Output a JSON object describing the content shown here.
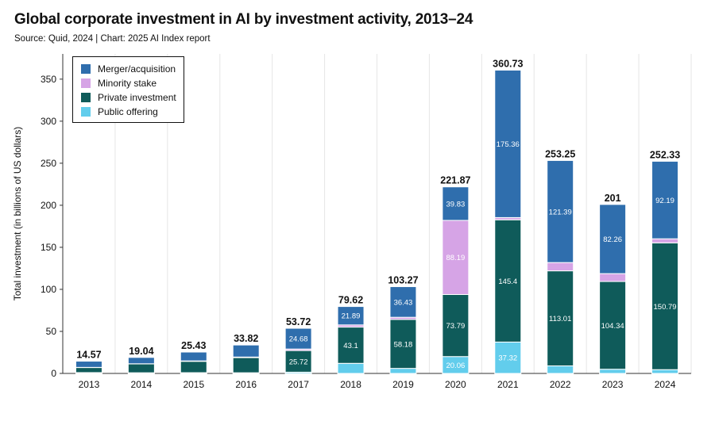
{
  "chart_data": {
    "type": "stacked-bar",
    "title": "Global corporate investment in AI by investment activity, 2013–24",
    "subtitle": "Source: Quid, 2024 | Chart: 2025 AI Index report",
    "xlabel": "",
    "ylabel": "Total investment (in billions of US dollars)",
    "ylim": [
      0,
      380
    ],
    "yticks": [
      0,
      50,
      100,
      150,
      200,
      250,
      300,
      350
    ],
    "grid": "vertical",
    "legend_position": "top-left",
    "categories": [
      "2013",
      "2014",
      "2015",
      "2016",
      "2017",
      "2018",
      "2019",
      "2020",
      "2021",
      "2022",
      "2023",
      "2024"
    ],
    "totals": [
      "14.57",
      "19.04",
      "25.43",
      "33.82",
      "53.72",
      "79.62",
      "103.27",
      "221.87",
      "360.73",
      "253.25",
      "201",
      "252.33"
    ],
    "series": [
      {
        "name": "Public offering",
        "color": "#62cdec",
        "values": [
          1.0,
          0.8,
          0.9,
          0.8,
          1.5,
          12.0,
          6.0,
          20.06,
          37.32,
          9.0,
          5.0,
          4.5
        ],
        "labels": [
          "",
          "",
          "",
          "",
          "",
          "",
          "",
          "20.06",
          "37.32",
          "",
          "",
          ""
        ]
      },
      {
        "name": "Private investment",
        "color": "#0f5b5a",
        "values": [
          6.0,
          10.5,
          13.5,
          18.0,
          25.72,
          43.1,
          58.18,
          73.79,
          145.4,
          113.01,
          104.34,
          150.79
        ],
        "labels": [
          "",
          "",
          "",
          "",
          "25.72",
          "43.1",
          "58.18",
          "73.79",
          "145.4",
          "113.01",
          "104.34",
          "150.79"
        ]
      },
      {
        "name": "Minority stake",
        "color": "#d6a4e6",
        "values": [
          0.2,
          0.2,
          0.5,
          0.7,
          1.8,
          2.6,
          2.6,
          88.19,
          2.65,
          9.85,
          9.36,
          4.85
        ],
        "labels": [
          "",
          "",
          "",
          "",
          "",
          "",
          "",
          "88.19",
          "",
          "",
          "",
          ""
        ]
      },
      {
        "name": "Merger/acquisition",
        "color": "#2f6ead",
        "values": [
          7.37,
          7.54,
          10.53,
          14.32,
          24.68,
          21.89,
          36.43,
          39.83,
          175.36,
          121.39,
          82.26,
          92.19
        ],
        "labels": [
          "",
          "",
          "",
          "",
          "24.68",
          "21.89",
          "36.43",
          "39.83",
          "175.36",
          "121.39",
          "82.26",
          "92.19"
        ]
      }
    ],
    "legend_order": [
      "Merger/acquisition",
      "Minority stake",
      "Private investment",
      "Public offering"
    ]
  }
}
